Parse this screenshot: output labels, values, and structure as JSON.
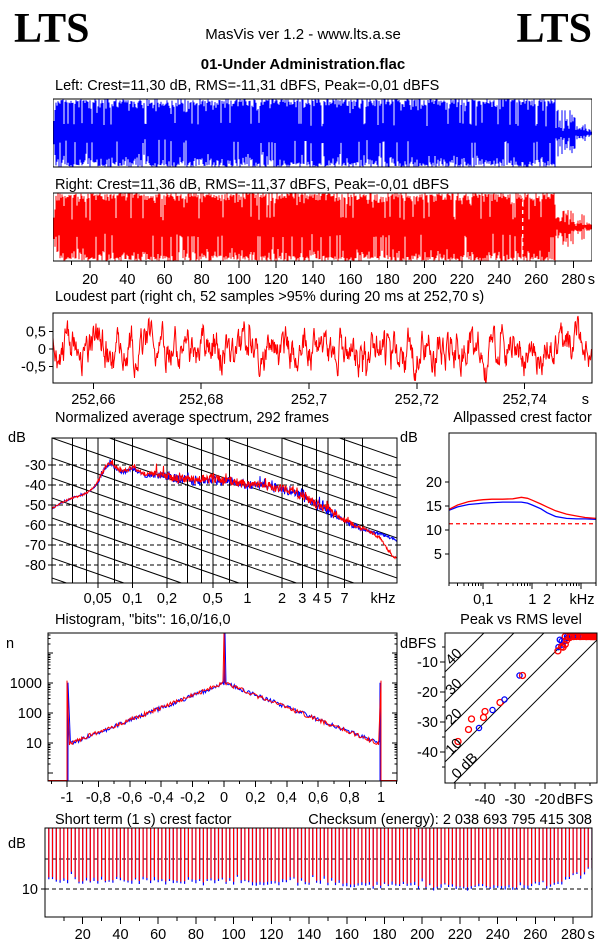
{
  "header": {
    "logo_left": "LTS",
    "logo_right": "LTS",
    "app_line": "MasVis ver 1.2 - www.lts.a.se",
    "title": "01-Under Administration.flac"
  },
  "labels": {
    "left_wave": "Left: Crest=11,30 dB, RMS=-11,31 dBFS, Peak=-0,01 dBFS",
    "right_wave": "Right: Crest=11,36 dB, RMS=-11,37 dBFS, Peak=-0,01 dBFS",
    "loudest": "Loudest part (right ch, 52 samples >95% during 20 ms at 252,70 s)",
    "spectrum_title": "Normalized average spectrum, 292 frames",
    "allpass_title": "Allpassed crest factor",
    "hist_title": "Histogram, \"bits\": 16,0/16,0",
    "peak_title": "Peak vs RMS level",
    "st_title": "Short term (1 s) crest factor",
    "checksum": "Checksum (energy):  2 038 693 795 415 308",
    "unit_db_spec_left": "dB",
    "unit_db_mid": "dB",
    "unit_n": "n",
    "unit_dbfs": "dBFS",
    "unit_db_st": "dB"
  },
  "colors": {
    "left_channel": "#0000ff",
    "right_channel": "#ff0000",
    "grid": "#000000",
    "reference_dashed_red": "#ff0000",
    "marker_dashed_white": "#ffffff",
    "background": "#ffffff"
  },
  "chart_data": [
    {
      "name": "left-waveform",
      "type": "area",
      "channel": "Left",
      "color": "#0000ff",
      "duration_s": 290,
      "crest_db": 11.3,
      "rms_dbfs": -11.31,
      "peak_dbfs": -0.01,
      "y_ticks": [
        0.5,
        0,
        -0.5
      ],
      "y_tick_labels": [
        "0,5",
        "0",
        "-0,5"
      ],
      "params": {
        "amplitude": 0.88,
        "fade_in_s": 1.5,
        "outro_start_s": 271
      }
    },
    {
      "name": "right-waveform",
      "type": "area",
      "channel": "Right",
      "color": "#ff0000",
      "duration_s": 290,
      "crest_db": 11.36,
      "rms_dbfs": -11.37,
      "peak_dbfs": -0.01,
      "loudest_marker_s": 252.7,
      "y_ticks": [
        0.5,
        0,
        -0.5
      ],
      "y_tick_labels": [
        "0,5",
        "0",
        "-0,5"
      ],
      "params": {
        "amplitude": 0.88,
        "fade_in_s": 1.5,
        "outro_start_s": 271
      }
    },
    {
      "name": "time-axis",
      "type": "axis",
      "range_s": [
        0,
        290
      ],
      "minor_step_s": 10,
      "ticks": [
        20,
        40,
        60,
        80,
        100,
        120,
        140,
        160,
        180,
        200,
        220,
        240,
        260,
        280
      ],
      "labels": [
        "20",
        "40",
        "60",
        "80",
        "100",
        "120",
        "140",
        "160",
        "180",
        "200",
        "220",
        "240",
        "260",
        "280"
      ],
      "unit": "s"
    },
    {
      "name": "loudest-part",
      "type": "line",
      "color": "#ff0000",
      "samples_over_95pct": 52,
      "window_ms": 20,
      "at_s": 252.7,
      "x_range_s": [
        252.6525,
        252.7525
      ],
      "x_ticks": [
        252.66,
        252.68,
        252.7,
        252.72,
        252.74
      ],
      "x_tick_labels": [
        "252,66",
        "252,68",
        "252,7",
        "252,72",
        "252,74"
      ],
      "x_unit": "s",
      "y_ticks": [
        0.5,
        0,
        -0.5
      ],
      "y_tick_labels": [
        "0,5",
        "0",
        "-0,5"
      ]
    },
    {
      "name": "spectrum",
      "type": "line",
      "frames": 292,
      "x_range_khz": [
        0.02,
        20
      ],
      "grid_khz": [
        0.03,
        0.04,
        0.05,
        0.07,
        0.1,
        0.2,
        0.3,
        0.4,
        0.5,
        0.7,
        1,
        2,
        3,
        4,
        5,
        7,
        10,
        20
      ],
      "x_ticks": [
        0.05,
        0.1,
        0.2,
        0.5,
        1,
        2,
        3,
        4,
        5,
        7
      ],
      "x_tick_labels": [
        "0,05",
        "0,1",
        "0,2",
        "0,5",
        "1",
        "2",
        "3",
        "4",
        "5",
        "7"
      ],
      "x_unit": "kHz",
      "y_ticks": [
        -30,
        -40,
        -50,
        -60,
        -70,
        -80
      ],
      "y_tick_labels": [
        "-30",
        "-40",
        "-50",
        "-60",
        "-70",
        "-80"
      ],
      "y_unit": "dB",
      "diagonal_slope_db_per_decade": 20,
      "series": [
        {
          "name": "left",
          "color": "#0000ff",
          "points": [
            [
              0.02,
              -52
            ],
            [
              0.024,
              -49
            ],
            [
              0.03,
              -46.5
            ],
            [
              0.035,
              -45.5
            ],
            [
              0.04,
              -44
            ],
            [
              0.045,
              -42
            ],
            [
              0.05,
              -39
            ],
            [
              0.055,
              -34
            ],
            [
              0.06,
              -30.5
            ],
            [
              0.065,
              -29
            ],
            [
              0.07,
              -31
            ],
            [
              0.08,
              -33.5
            ],
            [
              0.09,
              -33
            ],
            [
              0.1,
              -31.5
            ],
            [
              0.11,
              -33
            ],
            [
              0.13,
              -35.5
            ],
            [
              0.16,
              -34.5
            ],
            [
              0.2,
              -36
            ],
            [
              0.25,
              -37.5
            ],
            [
              0.3,
              -37
            ],
            [
              0.35,
              -38.5
            ],
            [
              0.4,
              -37.5
            ],
            [
              0.5,
              -37.5
            ],
            [
              0.6,
              -38.5
            ],
            [
              0.7,
              -38
            ],
            [
              0.85,
              -39.5
            ],
            [
              1,
              -40
            ],
            [
              1.2,
              -40
            ],
            [
              1.5,
              -41
            ],
            [
              2,
              -42.5
            ],
            [
              2.5,
              -44
            ],
            [
              3,
              -46
            ],
            [
              3.5,
              -48
            ],
            [
              4,
              -50.5
            ],
            [
              5,
              -53
            ],
            [
              6,
              -56
            ],
            [
              7,
              -58
            ],
            [
              8,
              -60
            ],
            [
              9,
              -61
            ],
            [
              10,
              -62
            ],
            [
              12,
              -63.5
            ],
            [
              15,
              -65
            ],
            [
              18,
              -66.5
            ],
            [
              20,
              -67.5
            ]
          ]
        },
        {
          "name": "right",
          "color": "#ff0000",
          "points": [
            [
              0.02,
              -52
            ],
            [
              0.024,
              -49
            ],
            [
              0.03,
              -46.5
            ],
            [
              0.035,
              -45.5
            ],
            [
              0.04,
              -44
            ],
            [
              0.045,
              -42
            ],
            [
              0.05,
              -38.5
            ],
            [
              0.055,
              -33.5
            ],
            [
              0.06,
              -30
            ],
            [
              0.065,
              -28.5
            ],
            [
              0.07,
              -30.5
            ],
            [
              0.08,
              -33
            ],
            [
              0.09,
              -32.5
            ],
            [
              0.1,
              -31
            ],
            [
              0.11,
              -32.5
            ],
            [
              0.13,
              -35
            ],
            [
              0.16,
              -34
            ],
            [
              0.2,
              -35.5
            ],
            [
              0.25,
              -37
            ],
            [
              0.3,
              -36.5
            ],
            [
              0.35,
              -38
            ],
            [
              0.4,
              -37
            ],
            [
              0.5,
              -37
            ],
            [
              0.6,
              -38
            ],
            [
              0.7,
              -37.5
            ],
            [
              0.85,
              -39
            ],
            [
              1,
              -39.5
            ],
            [
              1.2,
              -39.5
            ],
            [
              1.5,
              -40.5
            ],
            [
              2,
              -42
            ],
            [
              2.5,
              -43.5
            ],
            [
              3,
              -45.5
            ],
            [
              3.5,
              -47.5
            ],
            [
              4,
              -50
            ],
            [
              5,
              -52.5
            ],
            [
              6,
              -55.5
            ],
            [
              7,
              -57.5
            ],
            [
              8,
              -59.5
            ],
            [
              9,
              -60.5
            ],
            [
              10,
              -61.5
            ],
            [
              12,
              -64
            ],
            [
              14,
              -66.5
            ],
            [
              15,
              -68.5
            ],
            [
              16,
              -71
            ],
            [
              18,
              -75
            ],
            [
              20,
              -77
            ]
          ]
        }
      ]
    },
    {
      "name": "allpassed-crest",
      "type": "line",
      "x_range_khz": [
        0.02,
        20
      ],
      "x_ticks": [
        0.1,
        1,
        2
      ],
      "x_tick_labels": [
        "0,1",
        "1",
        "2"
      ],
      "x_unit": "kHz",
      "y_ticks": [
        20,
        15,
        10,
        5
      ],
      "y_tick_labels": [
        "20",
        "15",
        "10",
        "5"
      ],
      "y_unit": "dB",
      "reference_db": 11.3,
      "series": [
        {
          "name": "right",
          "color": "#ff0000",
          "points": [
            [
              0.02,
              14.3
            ],
            [
              0.03,
              15.2
            ],
            [
              0.05,
              15.9
            ],
            [
              0.08,
              16.2
            ],
            [
              0.1,
              16.3
            ],
            [
              0.15,
              16.4
            ],
            [
              0.25,
              16.4
            ],
            [
              0.4,
              16.5
            ],
            [
              0.6,
              16.8
            ],
            [
              0.8,
              16.6
            ],
            [
              1,
              16.2
            ],
            [
              1.5,
              15.4
            ],
            [
              2,
              14.8
            ],
            [
              3,
              14.0
            ],
            [
              5,
              13.3
            ],
            [
              8,
              12.9
            ],
            [
              12,
              12.6
            ],
            [
              20,
              12.4
            ]
          ]
        },
        {
          "name": "left",
          "color": "#0000ff",
          "points": [
            [
              0.02,
              14.1
            ],
            [
              0.03,
              14.8
            ],
            [
              0.05,
              15.3
            ],
            [
              0.08,
              15.5
            ],
            [
              0.1,
              15.6
            ],
            [
              0.15,
              15.7
            ],
            [
              0.25,
              15.8
            ],
            [
              0.4,
              15.8
            ],
            [
              0.6,
              15.8
            ],
            [
              0.8,
              15.6
            ],
            [
              1,
              15.2
            ],
            [
              1.5,
              14.4
            ],
            [
              2,
              13.6
            ],
            [
              3,
              12.8
            ],
            [
              5,
              12.4
            ],
            [
              8,
              12.3
            ],
            [
              12,
              12.3
            ],
            [
              20,
              12.2
            ]
          ]
        }
      ]
    },
    {
      "name": "histogram",
      "type": "line",
      "bits_label": "16,0/16,0",
      "x_ticks": [
        -1,
        -0.8,
        -0.6,
        -0.4,
        -0.2,
        0,
        0.2,
        0.4,
        0.6,
        0.8,
        1
      ],
      "x_tick_labels": [
        "-1",
        "-0,8",
        "-0,6",
        "-0,4",
        "-0,2",
        "0",
        "0,2",
        "0,4",
        "0,6",
        "0,8",
        "1"
      ],
      "y_ticks": [
        1000,
        100,
        10
      ],
      "y_tick_labels": [
        "1000",
        "100",
        "10"
      ],
      "y_axis_label": "n",
      "series": [
        {
          "name": "left",
          "color": "#0000ff"
        },
        {
          "name": "right",
          "color": "#ff0000"
        }
      ],
      "params": {
        "peak_n": 1000,
        "center_spike_n": 45000,
        "edge_spike_n": 1200,
        "floor_n": 10,
        "decay_decades_per_unit": 2.05,
        "noise_decades": 0.07
      }
    },
    {
      "name": "peak-vs-rms",
      "type": "scatter",
      "x_ticks": [
        -40,
        -30,
        -20
      ],
      "x_tick_labels": [
        "-40",
        "-30",
        "-20"
      ],
      "x_unit": "dBFS",
      "y_ticks": [
        -10,
        -20,
        -30,
        -40
      ],
      "y_tick_labels": [
        "-10",
        "-20",
        "-30",
        "-40"
      ],
      "y_unit": "dBFS",
      "diagonals_db": [
        40,
        30,
        20,
        10,
        0
      ],
      "diagonal_labels": [
        "40",
        "30",
        "20",
        "10",
        "0 dB"
      ],
      "cluster": {
        "count_red": 46,
        "count_blue": 38,
        "rms_min": -16,
        "rms_max": -3.2,
        "crest_min": 8.8,
        "crest_max": 13
      },
      "outliers": [
        {
          "rms": -49,
          "peak": -36.5,
          "ch": "R"
        },
        {
          "rms": -45.5,
          "peak": -32.5,
          "ch": "R"
        },
        {
          "rms": -44.5,
          "peak": -29,
          "ch": "R"
        },
        {
          "rms": -42,
          "peak": -32,
          "ch": "B"
        },
        {
          "rms": -40.5,
          "peak": -28.5,
          "ch": "R"
        },
        {
          "rms": -40,
          "peak": -26.5,
          "ch": "R"
        },
        {
          "rms": -37.5,
          "peak": -26,
          "ch": "B"
        },
        {
          "rms": -35,
          "peak": -23.5,
          "ch": "R"
        },
        {
          "rms": -33.5,
          "peak": -22.5,
          "ch": "B"
        },
        {
          "rms": -28.5,
          "peak": -14.5,
          "ch": "B"
        },
        {
          "rms": -27.5,
          "peak": -14.5,
          "ch": "R"
        }
      ]
    },
    {
      "name": "short-term-crest",
      "type": "scatter",
      "ref_lines_db": [
        15,
        10
      ],
      "y_tick": 10,
      "y_tick_label": "10",
      "y_unit": "dB",
      "x_ticks": [
        20,
        40,
        60,
        80,
        100,
        120,
        140,
        160,
        180,
        200,
        220,
        240,
        260,
        280
      ],
      "x_tick_labels": [
        "20",
        "40",
        "60",
        "80",
        "100",
        "120",
        "140",
        "160",
        "180",
        "200",
        "220",
        "240",
        "260",
        "280"
      ],
      "x_unit": "s",
      "noise_db": 0.5,
      "base_profile": [
        [
          0,
          11.2
        ],
        [
          30,
          11.05
        ],
        [
          75,
          10.95
        ],
        [
          120,
          11.0
        ],
        [
          155,
          10.85
        ],
        [
          165,
          10.35
        ],
        [
          200,
          10.1
        ],
        [
          240,
          10.05
        ],
        [
          260,
          10.2
        ],
        [
          270,
          10.5
        ],
        [
          278,
          11.5
        ],
        [
          284,
          12.0
        ],
        [
          290,
          13.0
        ]
      ],
      "colors": {
        "left": "#0000ff",
        "right": "#ff0000"
      }
    }
  ]
}
